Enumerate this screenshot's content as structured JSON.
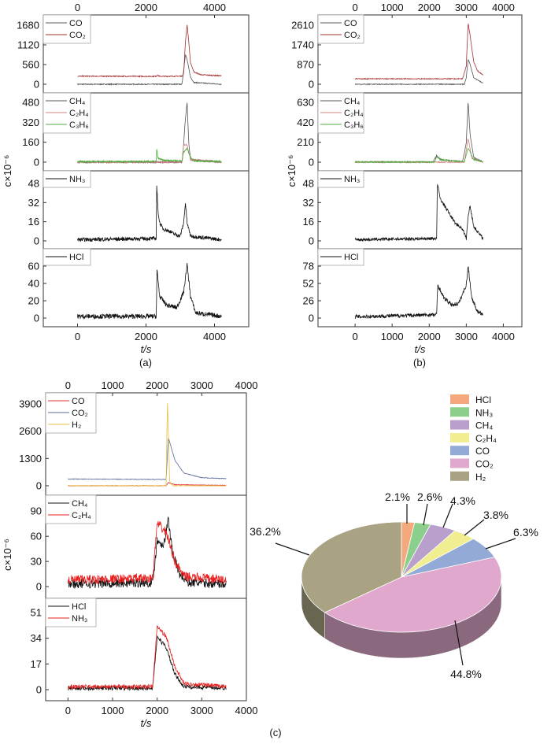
{
  "chart_data": [
    {
      "type": "line",
      "caption": "(a)",
      "xlabel": "t/s",
      "ylabel": "c×10⁻⁶",
      "xlim": [
        -1000,
        5000
      ],
      "xticks": [
        0,
        2000,
        4000
      ],
      "subplots": [
        {
          "ylim": [
            -246,
            1971
          ],
          "yticks": [
            0,
            560,
            1120,
            1680
          ],
          "series": [
            {
              "name": "CO",
              "color": "#555555",
              "x": [
                0,
                3050,
                3100,
                3150,
                3200,
                3300,
                3400,
                4200
              ],
              "y": [
                0,
                0,
                400,
                850,
                700,
                200,
                50,
                0
              ]
            },
            {
              "name": "CO₂",
              "color": "#a33030",
              "x": [
                0,
                2300,
                2320,
                2400,
                3050,
                3100,
                3150,
                3200,
                3250,
                3300,
                3400,
                3600,
                4200
              ],
              "y": [
                230,
                225,
                260,
                225,
                230,
                300,
                1200,
                1700,
                1200,
                600,
                350,
                270,
                240
              ]
            }
          ]
        },
        {
          "ylim": [
            -70,
            556
          ],
          "yticks": [
            0,
            160,
            320,
            480
          ],
          "series": [
            {
              "name": "CH₄",
              "color": "#555555",
              "x": [
                0,
                3050,
                3100,
                3150,
                3200,
                3250,
                3300,
                4200
              ],
              "y": [
                0,
                0,
                150,
                350,
                480,
                150,
                20,
                0
              ]
            },
            {
              "name": "C₂H₄",
              "color": "#d08080",
              "x": [
                0,
                3050,
                3100,
                3200,
                3300,
                4200
              ],
              "y": [
                0,
                0,
                140,
                140,
                20,
                0
              ]
            },
            {
              "name": "C₃H₆",
              "color": "#4caf3a",
              "x": [
                0,
                2300,
                2310,
                2350,
                2500,
                3050,
                3100,
                3200,
                3300,
                3400,
                4200
              ],
              "y": [
                5,
                5,
                110,
                30,
                15,
                10,
                80,
                110,
                40,
                10,
                5
              ]
            }
          ]
        },
        {
          "ylim": [
            -6.6,
            58.5
          ],
          "yticks": [
            0,
            16,
            32,
            48
          ],
          "series": [
            {
              "name": "NH₃",
              "color": "#111111",
              "x": [
                0,
                2300,
                2310,
                2350,
                2400,
                2500,
                2700,
                2800,
                3000,
                3100,
                3150,
                3200,
                3300,
                4200
              ],
              "y": [
                1,
                2,
                48,
                25,
                15,
                10,
                8,
                6,
                4,
                15,
                32,
                15,
                4,
                1
              ]
            }
          ]
        },
        {
          "ylim": [
            -10,
            80
          ],
          "yticks": [
            0,
            20,
            40,
            60
          ],
          "series": [
            {
              "name": "HCl",
              "color": "#111111",
              "x": [
                0,
                2300,
                2320,
                2400,
                2600,
                2900,
                3100,
                3200,
                3300,
                3450,
                4200
              ],
              "y": [
                2,
                2,
                55,
                25,
                15,
                12,
                30,
                62,
                25,
                6,
                2
              ]
            }
          ]
        }
      ]
    },
    {
      "type": "line",
      "caption": "(b)",
      "xlabel": "t/s",
      "ylabel": "c×10⁻⁶",
      "xlim": [
        -1000,
        4500
      ],
      "xticks": [
        0,
        1000,
        2000,
        3000,
        4000
      ],
      "subplots": [
        {
          "ylim": [
            -383,
            3062
          ],
          "yticks": [
            0,
            870,
            1740,
            2610
          ],
          "series": [
            {
              "name": "CO",
              "color": "#555555",
              "x": [
                0,
                2950,
                3000,
                3050,
                3100,
                3200,
                3450
              ],
              "y": [
                0,
                0,
                300,
                1100,
                900,
                300,
                50
              ]
            },
            {
              "name": "CO₂",
              "color": "#a33030",
              "x": [
                0,
                2900,
                3000,
                3050,
                3100,
                3200,
                3300,
                3450
              ],
              "y": [
                240,
                240,
                800,
                2700,
                2200,
                1000,
                600,
                400
              ]
            }
          ]
        },
        {
          "ylim": [
            -91,
            730
          ],
          "yticks": [
            0,
            210,
            420,
            630
          ],
          "series": [
            {
              "name": "CH₄",
              "color": "#555555",
              "x": [
                0,
                2100,
                2200,
                2300,
                2900,
                3000,
                3050,
                3100,
                3200,
                3450
              ],
              "y": [
                3,
                3,
                70,
                30,
                5,
                200,
                640,
                300,
                50,
                5
              ]
            },
            {
              "name": "C₂H₄",
              "color": "#d08080",
              "x": [
                0,
                2950,
                3050,
                3150,
                3450
              ],
              "y": [
                0,
                0,
                250,
                40,
                0
              ]
            },
            {
              "name": "C₃H₆",
              "color": "#4caf3a",
              "x": [
                0,
                2150,
                2200,
                2300,
                2950,
                3050,
                3200,
                3450
              ],
              "y": [
                2,
                2,
                60,
                25,
                5,
                150,
                30,
                3
              ]
            }
          ]
        },
        {
          "ylim": [
            -6.6,
            58.5
          ],
          "yticks": [
            0,
            16,
            32,
            48
          ],
          "series": [
            {
              "name": "NH₃",
              "color": "#111111",
              "x": [
                0,
                2200,
                2220,
                2300,
                2500,
                2700,
                2900,
                3000,
                3050,
                3100,
                3200,
                3450
              ],
              "y": [
                1,
                2,
                48,
                35,
                25,
                15,
                10,
                2,
                20,
                30,
                12,
                2
              ]
            }
          ]
        },
        {
          "ylim": [
            -13,
            104
          ],
          "yticks": [
            0,
            26,
            52,
            78
          ],
          "series": [
            {
              "name": "HCl",
              "color": "#111111",
              "x": [
                0,
                2200,
                2230,
                2400,
                2600,
                2800,
                3000,
                3050,
                3150,
                3300,
                3450
              ],
              "y": [
                2,
                5,
                50,
                30,
                20,
                22,
                50,
                78,
                30,
                10,
                5
              ]
            }
          ]
        }
      ]
    },
    {
      "type": "line",
      "caption": "(c)",
      "xlabel": "t/s",
      "ylabel": "c×10⁻⁶",
      "xlim": [
        -500,
        4000
      ],
      "xticks": [
        0,
        1000,
        2000,
        3000,
        4000
      ],
      "subplots": [
        {
          "ylim": [
            -452,
            4427
          ],
          "yticks": [
            0,
            1300,
            2600,
            3900
          ],
          "series": [
            {
              "name": "CO",
              "color": "#e03030",
              "x": [
                0,
                2200,
                2250,
                2400,
                3550
              ],
              "y": [
                0,
                0,
                150,
                50,
                20
              ]
            },
            {
              "name": "CO₂",
              "color": "#5a6a9a",
              "x": [
                0,
                2200,
                2250,
                2400,
                2600,
                3000,
                3550
              ],
              "y": [
                320,
                300,
                2300,
                1200,
                600,
                380,
                340
              ]
            },
            {
              "name": "H₂",
              "color": "#e8c040",
              "x": [
                0,
                2200,
                2230,
                2280,
                2350,
                3550
              ],
              "y": [
                0,
                0,
                4100,
                200,
                0,
                0
              ]
            }
          ]
        },
        {
          "ylim": [
            -14,
            109
          ],
          "yticks": [
            0,
            30,
            60,
            90
          ],
          "series": [
            {
              "name": "CH₄",
              "color": "#111111",
              "x": [
                0,
                1900,
                2000,
                2150,
                2250,
                2350,
                2500,
                2700,
                3550
              ],
              "y": [
                3,
                5,
                55,
                50,
                80,
                40,
                15,
                5,
                3
              ]
            },
            {
              "name": "C₂H₄",
              "color": "#e82020",
              "x": [
                0,
                1900,
                2000,
                2200,
                2400,
                2600,
                3550
              ],
              "y": [
                8,
                10,
                75,
                65,
                30,
                12,
                8
              ]
            }
          ]
        },
        {
          "ylim": [
            -7.3,
            60.4
          ],
          "yticks": [
            0,
            17,
            34,
            51
          ],
          "series": [
            {
              "name": "HCl",
              "color": "#111111",
              "x": [
                0,
                1900,
                2000,
                2200,
                2400,
                2600,
                3550
              ],
              "y": [
                1,
                1,
                35,
                28,
                10,
                2,
                1
              ]
            },
            {
              "name": "NH₃",
              "color": "#e82020",
              "x": [
                0,
                1900,
                2000,
                2200,
                2400,
                2600,
                3550
              ],
              "y": [
                2,
                2,
                42,
                35,
                15,
                4,
                2
              ]
            }
          ]
        }
      ]
    },
    {
      "type": "pie",
      "style": "3d",
      "legend_position": "top-right",
      "slices": [
        {
          "name": "HCl",
          "value": 2.1,
          "label": "2.1%",
          "color": "#f4a87c"
        },
        {
          "name": "NH₃",
          "value": 2.6,
          "label": "2.6%",
          "color": "#8ccf8c"
        },
        {
          "name": "CH₄",
          "value": 4.3,
          "label": "4.3%",
          "color": "#b9a0cc"
        },
        {
          "name": "C₂H₄",
          "value": 3.8,
          "label": "3.8%",
          "color": "#f0ee90"
        },
        {
          "name": "CO",
          "value": 6.3,
          "label": "6.3%",
          "color": "#93a9d6"
        },
        {
          "name": "CO₂",
          "value": 44.8,
          "label": "44.8%",
          "color": "#e0a8cc"
        },
        {
          "name": "H₂",
          "value": 36.2,
          "label": "36.2%",
          "color": "#a9a383"
        }
      ]
    }
  ]
}
